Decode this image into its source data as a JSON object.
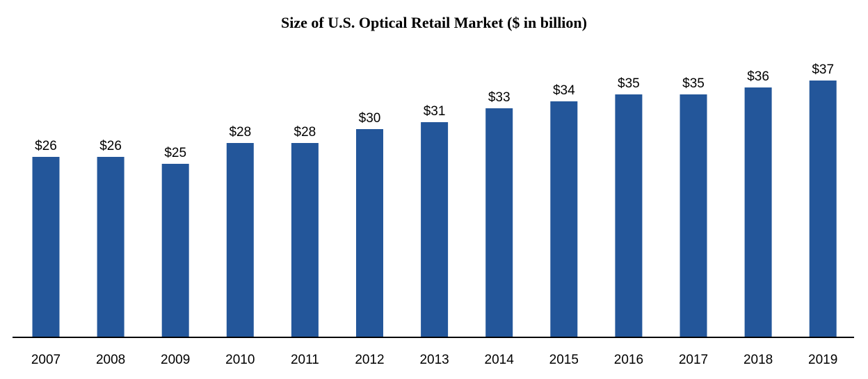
{
  "chart_data": {
    "type": "bar",
    "title": "Size of U.S. Optical Retail Market ($ in billion)",
    "xlabel": "",
    "ylabel": "",
    "categories": [
      "2007",
      "2008",
      "2009",
      "2010",
      "2011",
      "2012",
      "2013",
      "2014",
      "2015",
      "2016",
      "2017",
      "2018",
      "2019"
    ],
    "values": [
      26,
      26,
      25,
      28,
      28,
      30,
      31,
      33,
      34,
      35,
      35,
      36,
      37
    ],
    "data_labels": [
      "$26",
      "$26",
      "$25",
      "$28",
      "$28",
      "$30",
      "$31",
      "$33",
      "$34",
      "$35",
      "$35",
      "$36",
      "$37"
    ],
    "ylim": [
      0,
      37
    ],
    "grid": false,
    "legend": "none",
    "bar_color": "#23569A",
    "axis_color": "#000000"
  }
}
